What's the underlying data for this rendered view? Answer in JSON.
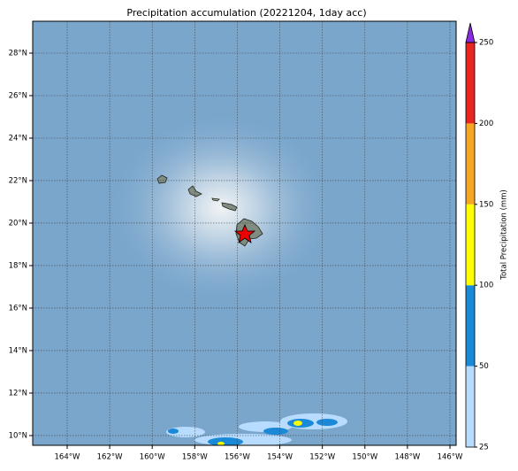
{
  "map": {
    "title": "Precipitation accumulation (20221204, 1day acc)",
    "xlim": [
      -165.62,
      -145.71
    ],
    "ylim": [
      9.54,
      29.5
    ],
    "xticks": [
      {
        "value": -164,
        "label": "164°W"
      },
      {
        "value": -162,
        "label": "162°W"
      },
      {
        "value": -160,
        "label": "160°W"
      },
      {
        "value": -158,
        "label": "158°W"
      },
      {
        "value": -156,
        "label": "156°W"
      },
      {
        "value": -154,
        "label": "154°W"
      },
      {
        "value": -152,
        "label": "152°W"
      },
      {
        "value": -150,
        "label": "150°W"
      },
      {
        "value": -148,
        "label": "148°W"
      },
      {
        "value": -146,
        "label": "146°W"
      }
    ],
    "yticks": [
      {
        "value": 10,
        "label": "10°N"
      },
      {
        "value": 12,
        "label": "12°N"
      },
      {
        "value": 14,
        "label": "14°N"
      },
      {
        "value": 16,
        "label": "16°N"
      },
      {
        "value": 18,
        "label": "18°N"
      },
      {
        "value": 20,
        "label": "20°N"
      },
      {
        "value": 22,
        "label": "22°N"
      },
      {
        "value": 24,
        "label": "24°N"
      },
      {
        "value": 26,
        "label": "26°N"
      },
      {
        "value": 28,
        "label": "28°N"
      }
    ],
    "grid": true,
    "colorbar": {
      "label": "Total Precipitation (mm)",
      "levels": [
        25,
        50,
        100,
        150,
        200,
        250
      ],
      "colors": [
        "#b8dcff",
        "#1a8ad8",
        "#ffff00",
        "#f5a623",
        "#e8251f"
      ],
      "extend_color": "#8a2be2"
    }
  }
}
